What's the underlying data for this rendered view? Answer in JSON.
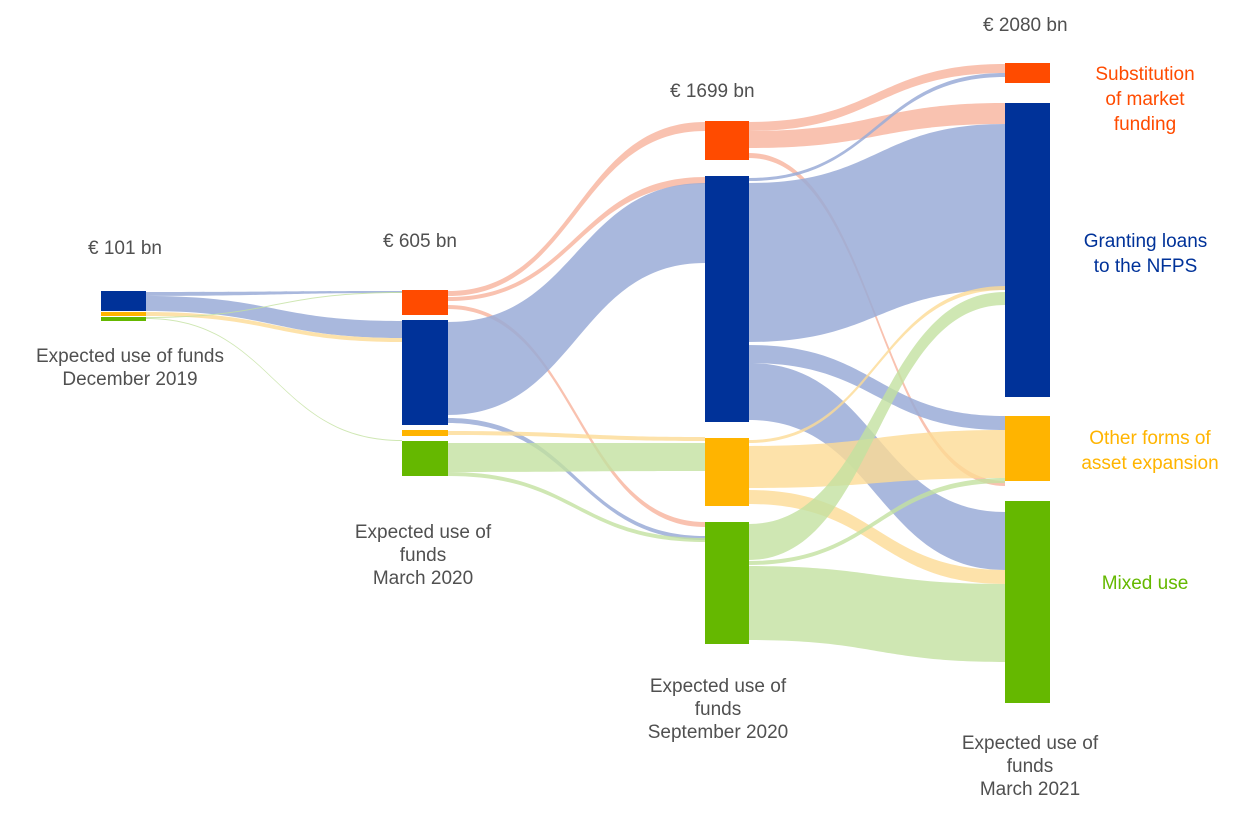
{
  "stages": [
    {
      "total": "€ 101 bn",
      "label_lines": [
        "Expected use of funds",
        "December 2019"
      ]
    },
    {
      "total": "€ 605 bn",
      "label_lines": [
        "Expected use of",
        "funds",
        "March 2020"
      ]
    },
    {
      "total": "€ 1699 bn",
      "label_lines": [
        "Expected use of",
        "funds",
        "September 2020"
      ]
    },
    {
      "total": "€ 2080 bn",
      "label_lines": [
        "Expected use of",
        "funds",
        "March 2021"
      ]
    }
  ],
  "categories": [
    {
      "key": "market",
      "lines": [
        "Substitution",
        "of market",
        "funding"
      ],
      "color": "#FF4B00"
    },
    {
      "key": "loans",
      "lines": [
        "Granting loans",
        "to the NFPS"
      ],
      "color": "#003299"
    },
    {
      "key": "asset",
      "lines": [
        "Other forms of",
        "asset expansion"
      ],
      "color": "#FFB400"
    },
    {
      "key": "mixed",
      "lines": [
        "Mixed use"
      ],
      "color": "#65B800"
    }
  ],
  "colors": {
    "market": "#FF4B00",
    "loans": "#003299",
    "asset": "#FFB400",
    "mixed": "#65B800",
    "market_light": "#F7B39C",
    "loans_light": "#9AABD7",
    "asset_light": "#FCDB95",
    "mixed_light": "#C3E1A0"
  }
}
